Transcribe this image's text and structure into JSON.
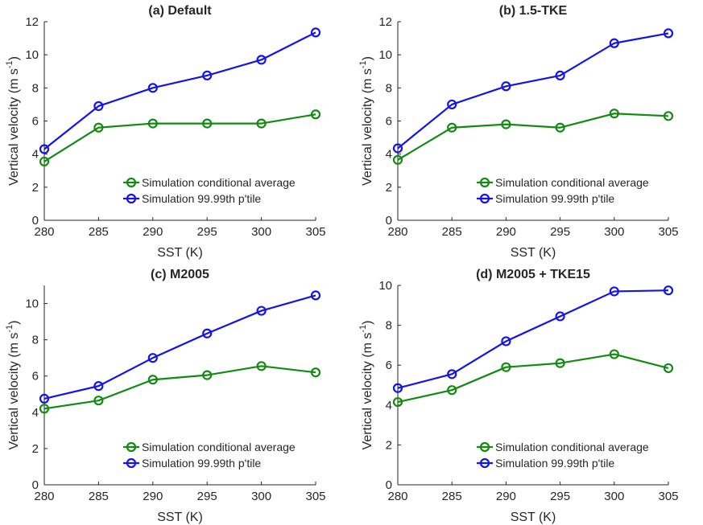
{
  "figure": {
    "colors": {
      "conditional": "#138a13",
      "percentile": "#1414e6",
      "axis": "#262626"
    }
  },
  "chart_data": [
    {
      "type": "line",
      "title": "(a) Default",
      "xlabel": "SST (K)",
      "ylabel": "Vertical velocity (m s",
      "ylabel_sup": "-1",
      "ylabel_end": ")",
      "x": [
        280,
        285,
        290,
        295,
        300,
        305
      ],
      "xlim": [
        280,
        305
      ],
      "xticks": [
        280,
        285,
        290,
        295,
        300,
        305
      ],
      "ylim": [
        0,
        12
      ],
      "yticks": [
        0,
        2,
        4,
        6,
        8,
        10,
        12
      ],
      "legend_position": "lower-right",
      "series": [
        {
          "name": "Simulation conditional average",
          "color": "#138a13",
          "values": [
            3.55,
            5.6,
            5.85,
            5.85,
            5.85,
            6.4
          ]
        },
        {
          "name": "Simulation 99.99th p'tile",
          "color": "#1414e6",
          "values": [
            4.3,
            6.9,
            8.0,
            8.75,
            9.7,
            11.35
          ]
        }
      ]
    },
    {
      "type": "line",
      "title": "(b) 1.5-TKE",
      "xlabel": "SST (K)",
      "ylabel": "Vertical velocity (m s",
      "ylabel_sup": "-1",
      "ylabel_end": ")",
      "x": [
        280,
        285,
        290,
        295,
        300,
        305
      ],
      "xlim": [
        280,
        305
      ],
      "xticks": [
        280,
        285,
        290,
        295,
        300,
        305
      ],
      "ylim": [
        0,
        12
      ],
      "yticks": [
        0,
        2,
        4,
        6,
        8,
        10,
        12
      ],
      "legend_position": "lower-right",
      "series": [
        {
          "name": "Simulation conditional average",
          "color": "#138a13",
          "values": [
            3.65,
            5.6,
            5.8,
            5.6,
            6.45,
            6.3
          ]
        },
        {
          "name": "Simulation 99.99th p'tile",
          "color": "#1414e6",
          "values": [
            4.35,
            7.0,
            8.1,
            8.75,
            10.7,
            11.3
          ]
        }
      ]
    },
    {
      "type": "line",
      "title": "(c) M2005",
      "xlabel": "SST (K)",
      "ylabel": "Vertical velocity (m s",
      "ylabel_sup": "-1",
      "ylabel_end": ")",
      "x": [
        280,
        285,
        290,
        295,
        300,
        305
      ],
      "xlim": [
        280,
        305
      ],
      "xticks": [
        280,
        285,
        290,
        295,
        300,
        305
      ],
      "ylim": [
        0,
        11
      ],
      "yticks": [
        0,
        2,
        4,
        6,
        8,
        10
      ],
      "legend_position": "lower-right",
      "series": [
        {
          "name": "Simulation conditional average",
          "color": "#138a13",
          "values": [
            4.2,
            4.65,
            5.8,
            6.05,
            6.55,
            6.2
          ]
        },
        {
          "name": "Simulation 99.99th p'tile",
          "color": "#1414e6",
          "values": [
            4.75,
            5.45,
            7.0,
            8.35,
            9.6,
            10.45
          ]
        }
      ]
    },
    {
      "type": "line",
      "title": "(d) M2005 + TKE15",
      "xlabel": "SST (K)",
      "ylabel": "Vertical velocity (m s",
      "ylabel_sup": "-1",
      "ylabel_end": ")",
      "x": [
        280,
        285,
        290,
        295,
        300,
        305
      ],
      "xlim": [
        280,
        305
      ],
      "xticks": [
        280,
        285,
        290,
        295,
        300,
        305
      ],
      "ylim": [
        0,
        10
      ],
      "yticks": [
        0,
        2,
        4,
        6,
        8,
        10
      ],
      "legend_position": "lower-right",
      "series": [
        {
          "name": "Simulation conditional average",
          "color": "#138a13",
          "values": [
            4.15,
            4.75,
            5.9,
            6.1,
            6.55,
            5.85
          ]
        },
        {
          "name": "Simulation 99.99th p'tile",
          "color": "#1414e6",
          "values": [
            4.85,
            5.55,
            7.2,
            8.45,
            9.7,
            9.75
          ]
        }
      ]
    }
  ]
}
